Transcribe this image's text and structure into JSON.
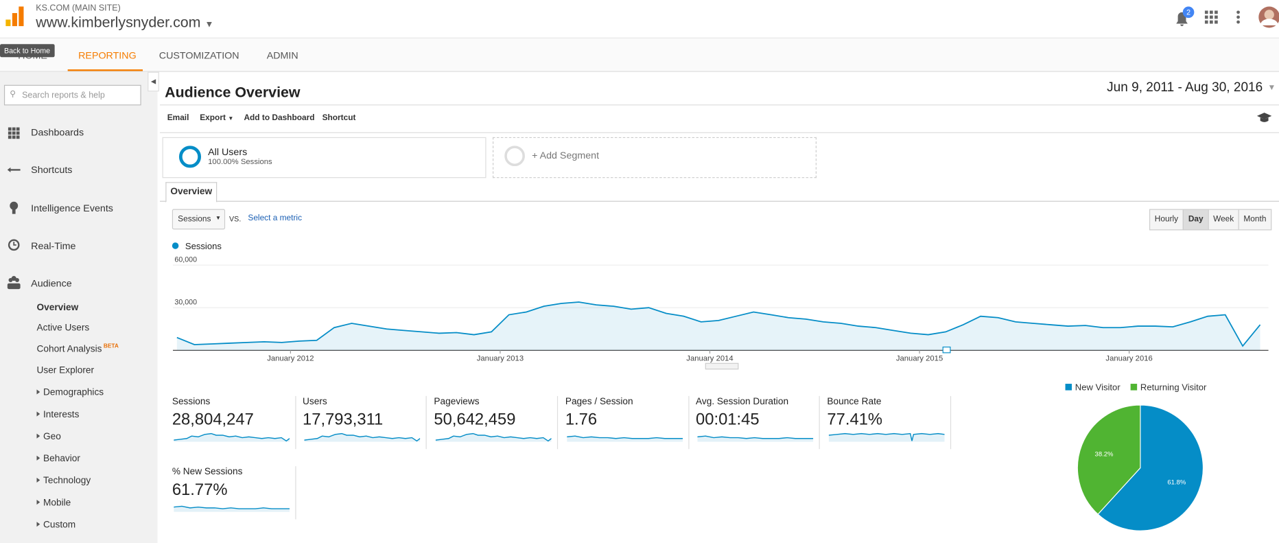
{
  "header": {
    "account": "KS.COM (MAIN SITE)",
    "property": "www.kimberlysnyder.com",
    "notifications": "2"
  },
  "nav": {
    "tooltip": "Back to Home",
    "tabs": [
      "HOME",
      "REPORTING",
      "CUSTOMIZATION",
      "ADMIN"
    ]
  },
  "sidebar": {
    "search_placeholder": "Search reports & help",
    "items": [
      "Dashboards",
      "Shortcuts",
      "Intelligence Events",
      "Real-Time",
      "Audience"
    ],
    "audience_items": [
      "Overview",
      "Active Users",
      "Cohort Analysis",
      "User Explorer",
      "Demographics",
      "Interests",
      "Geo",
      "Behavior",
      "Technology",
      "Mobile",
      "Custom"
    ],
    "beta": "BETA"
  },
  "main": {
    "title": "Audience Overview",
    "date_range": "Jun 9, 2011 - Aug 30, 2016",
    "toolbar": [
      "Email",
      "Export",
      "Add to Dashboard",
      "Shortcut"
    ],
    "segment": {
      "name": "All Users",
      "detail": "100.00% Sessions",
      "add": "+ Add Segment"
    },
    "tab": "Overview",
    "metric_select": "Sessions",
    "vs": "VS.",
    "select_metric": "Select a metric",
    "granularity": [
      "Hourly",
      "Day",
      "Week",
      "Month"
    ]
  },
  "chart_data": [
    {
      "type": "line",
      "series": [
        {
          "name": "Sessions",
          "color": "#058dc7",
          "values": [
            9000,
            4000,
            4500,
            5000,
            5500,
            6000,
            5500,
            6500,
            7000,
            16000,
            19000,
            17000,
            15000,
            14000,
            13000,
            12000,
            12500,
            11000,
            13000,
            25000,
            27000,
            31000,
            33000,
            34000,
            32000,
            31000,
            29000,
            30000,
            26000,
            24000,
            20000,
            21000,
            24000,
            27000,
            25000,
            23000,
            22000,
            20000,
            19000,
            17000,
            16000,
            14000,
            12000,
            11000,
            13000,
            18000,
            24000,
            23000,
            20000,
            19000,
            18000,
            17000,
            17500,
            16000,
            16000,
            17000,
            17000,
            16500,
            20000,
            24000,
            25000,
            3000,
            18000
          ]
        }
      ],
      "x": [
        0.5,
        1.5,
        2.5,
        3.5,
        4.5,
        5.5,
        6.5,
        7.5,
        8.5,
        9.5,
        10.5,
        11.5,
        12.5,
        13.5,
        14.5,
        15.5,
        16.5,
        17.5,
        18.5,
        19.5,
        20.5,
        21.5,
        22.5,
        23.5,
        24.5,
        25.5,
        26.5,
        27.5,
        28.5,
        29.5,
        30.5,
        31.5,
        32.5,
        33.5,
        34.5,
        35.5,
        36.5,
        37.5,
        38.5,
        39.5,
        40.5,
        41.5,
        42.5,
        43.5,
        44.5,
        45.5,
        46.5,
        47.5,
        48.5,
        49.5,
        50.5,
        51.5,
        52.5,
        53.5,
        54.5,
        55.5,
        56.5,
        57.5,
        58.5,
        59.5,
        60.5,
        61.5,
        62.5
      ],
      "xlim": [
        0.27,
        62.97
      ],
      "xticks": [
        {
          "value": 7,
          "label": "January 2012"
        },
        {
          "value": 19,
          "label": "January 2013"
        },
        {
          "value": 31,
          "label": "January 2014"
        },
        {
          "value": 43,
          "label": "January 2015"
        },
        {
          "value": 55,
          "label": "January 2016"
        }
      ],
      "ylim": [
        0,
        65000
      ],
      "yticks": [
        {
          "value": 30000,
          "label": "30,000"
        },
        {
          "value": 60000,
          "label": "60,000"
        }
      ],
      "grid": true
    },
    {
      "type": "pie",
      "categories": [
        "New Visitor",
        "Returning Visitor"
      ],
      "values": [
        61.8,
        38.2
      ],
      "value_labels": [
        "61.8%",
        "38.2%"
      ],
      "colors": [
        "#058dc7",
        "#50b432"
      ]
    }
  ],
  "metrics": [
    {
      "label": "Sessions",
      "value": "28,804,247"
    },
    {
      "label": "Users",
      "value": "17,793,311"
    },
    {
      "label": "Pageviews",
      "value": "50,642,459"
    },
    {
      "label": "Pages / Session",
      "value": "1.76"
    },
    {
      "label": "Avg. Session Duration",
      "value": "00:01:45"
    },
    {
      "label": "Bounce Rate",
      "value": "77.41%"
    },
    {
      "label": "% New Sessions",
      "value": "61.77%"
    }
  ]
}
